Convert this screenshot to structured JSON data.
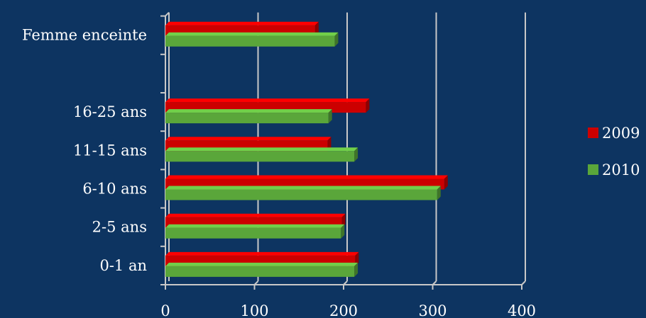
{
  "chart_data": {
    "type": "bar",
    "orientation": "horizontal",
    "style": "3d",
    "categories": [
      "Femme enceinte",
      "",
      "16-25 ans",
      "11-15 ans",
      "6-10 ans",
      "2-5 ans",
      "0-1 an"
    ],
    "series": [
      {
        "name": "2009",
        "color": "#cc0000",
        "values": [
          168,
          null,
          225,
          182,
          313,
          198,
          213
        ]
      },
      {
        "name": "2010",
        "color": "#5aa63a",
        "values": [
          190,
          null,
          183,
          212,
          305,
          197,
          212
        ]
      }
    ],
    "xlim": [
      0,
      400
    ],
    "xticks": [
      "0",
      "100",
      "200",
      "300",
      "400"
    ],
    "grid": true,
    "legend_position": "right",
    "title": "",
    "xlabel": "",
    "ylabel": ""
  }
}
